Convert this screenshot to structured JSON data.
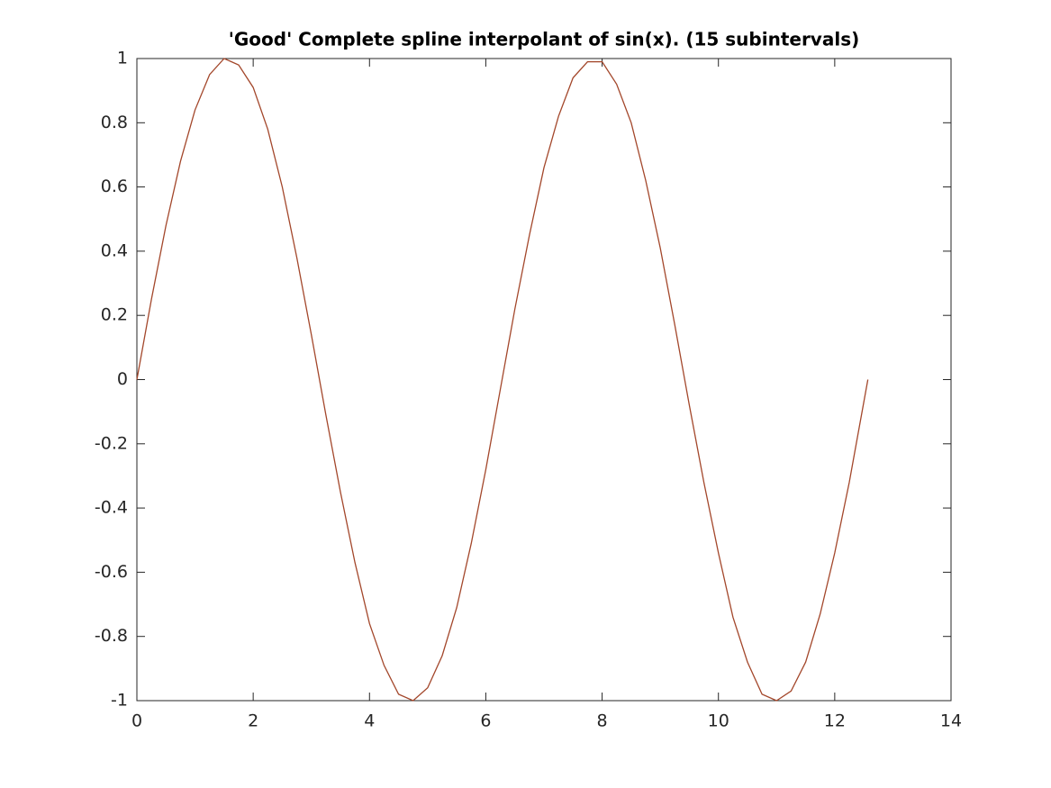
{
  "chart_data": {
    "type": "line",
    "title": "'Good' Complete spline interpolant of sin(x). (15 subintervals)",
    "x": [
      0,
      0.25,
      0.5,
      0.75,
      1,
      1.25,
      1.5,
      1.75,
      2,
      2.25,
      2.5,
      2.75,
      3,
      3.25,
      3.5,
      3.75,
      4,
      4.25,
      4.5,
      4.75,
      5,
      5.25,
      5.5,
      5.75,
      6,
      6.25,
      6.5,
      6.75,
      7,
      7.25,
      7.5,
      7.75,
      8,
      8.25,
      8.5,
      8.75,
      9,
      9.25,
      9.5,
      9.75,
      10,
      10.25,
      10.5,
      10.75,
      11,
      11.25,
      11.5,
      11.75,
      12,
      12.25,
      12.5,
      12.57
    ],
    "series": [
      {
        "color": "#a3472b",
        "values": [
          0,
          0.25,
          0.48,
          0.68,
          0.84,
          0.95,
          1.0,
          0.98,
          0.91,
          0.78,
          0.6,
          0.38,
          0.14,
          -0.11,
          -0.35,
          -0.57,
          -0.76,
          -0.89,
          -0.98,
          -1.0,
          -0.96,
          -0.86,
          -0.71,
          -0.51,
          -0.28,
          -0.03,
          0.22,
          0.45,
          0.66,
          0.82,
          0.94,
          0.99,
          0.99,
          0.92,
          0.8,
          0.62,
          0.41,
          0.17,
          -0.08,
          -0.32,
          -0.54,
          -0.74,
          -0.88,
          -0.98,
          -1.0,
          -0.97,
          -0.88,
          -0.73,
          -0.54,
          -0.32,
          -0.07,
          0.0
        ]
      }
    ],
    "xlim": [
      0,
      14
    ],
    "xticks": [
      0,
      2,
      4,
      6,
      8,
      10,
      12,
      14
    ],
    "ylim": [
      -1,
      1
    ],
    "yticks": [
      -1,
      -0.8,
      -0.6,
      -0.4,
      -0.2,
      0,
      0.2,
      0.4,
      0.6,
      0.8,
      1
    ]
  }
}
